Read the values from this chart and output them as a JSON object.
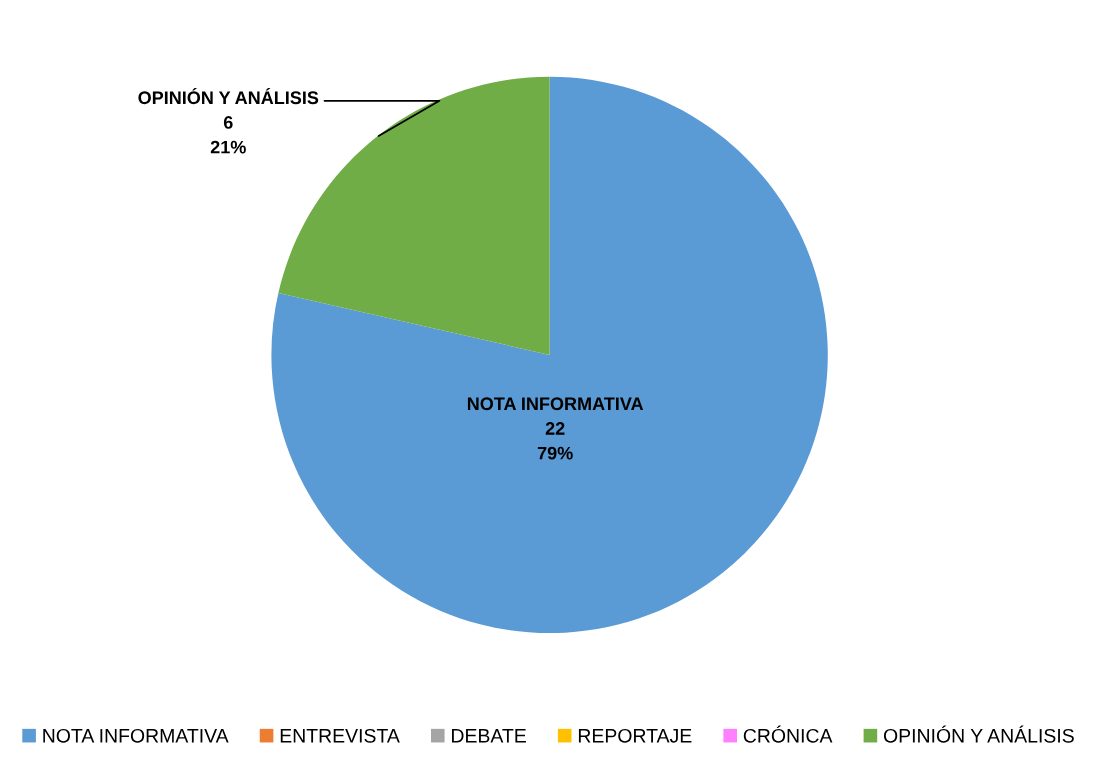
{
  "chart_data": {
    "type": "pie",
    "categories": [
      "NOTA INFORMATIVA",
      "ENTREVISTA",
      "DEBATE",
      "REPORTAJE",
      "CRÓNICA",
      "OPINIÓN Y ANÁLISIS"
    ],
    "values": [
      22,
      0,
      0,
      0,
      0,
      6
    ],
    "colors": [
      "#5b9bd5",
      "#ed7d31",
      "#a5a5a5",
      "#ffc000",
      "#ff80ff",
      "#70ad47"
    ],
    "value_labels": [
      "22\n79%",
      null,
      null,
      null,
      null,
      "6\n21%"
    ],
    "legend": "bottom"
  }
}
